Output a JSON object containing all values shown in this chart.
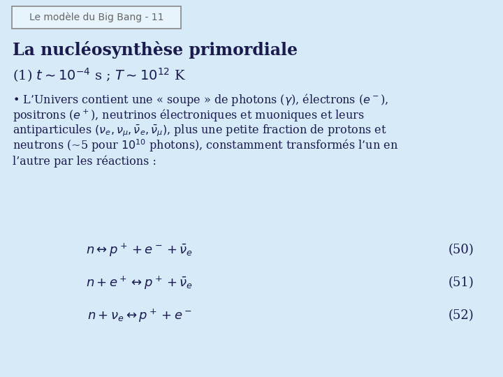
{
  "background_color": "#d6eaf8",
  "title_box_text": "Le modèle du Big Bang - 11",
  "title_box_color": "#e8f4fb",
  "title_box_border": "#888888",
  "heading": "La nucléosynthèse primordiale",
  "subheading": "(1) $t \\sim 10^{-4}$ s ; $T \\sim 10^{12}$ K",
  "body_lines": [
    "• L’Univers contient une « soupe » de photons ($\\gamma$), électrons ($e^-$),",
    "positrons ($e^+$), neutrinos électroniques et muoniques et leurs",
    "antiparticules $(\\nu_e, \\nu_{\\mu}, \\bar{\\nu}_e, \\bar{\\nu}_{\\mu})$, plus une petite fraction de protons et",
    "neutrons (~5 pour $10^{10}$ photons), constamment transformés l’un en",
    "l’autre par les réactions :"
  ],
  "eq1": "$n \\leftrightarrow p^+ + e^- + \\bar{\\nu}_e$",
  "eq2": "$n + e^+ \\leftrightarrow p^+ + \\bar{\\nu}_e$",
  "eq3": "$n + \\nu_e \\leftrightarrow p^+ + e^-$",
  "eq_nums": [
    "(50)",
    "(51)",
    "(52)"
  ],
  "text_color": "#1a1a4e",
  "title_color": "#666666",
  "heading_fontsize": 17,
  "subheading_fontsize": 14,
  "body_fontsize": 11.5,
  "eq_fontsize": 13
}
